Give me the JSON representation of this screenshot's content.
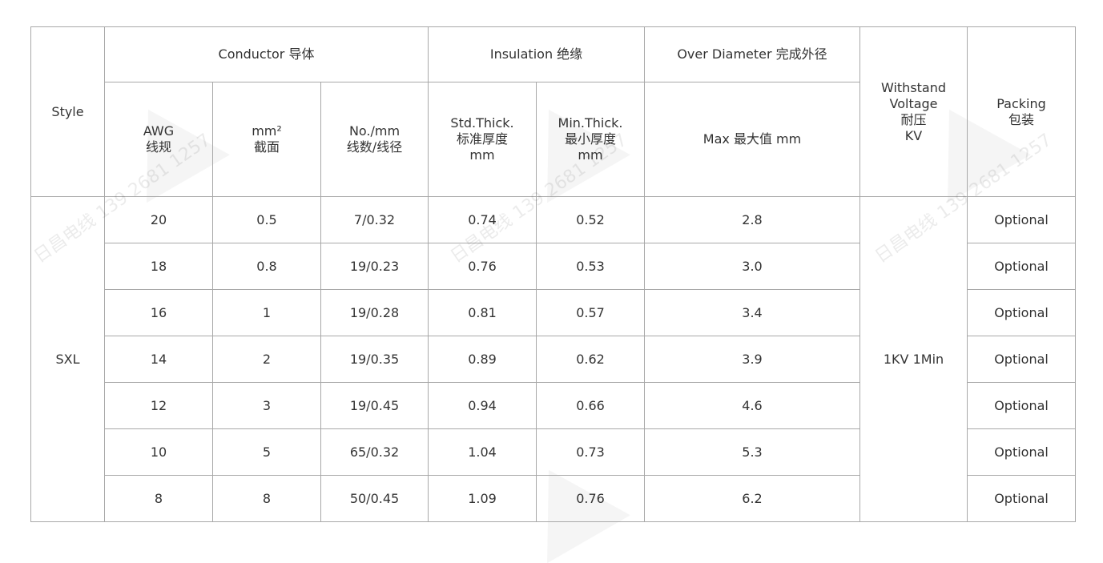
{
  "watermark": "日昌电线 139 2681 1257",
  "header": {
    "style": "Style",
    "conductor": "Conductor 导体",
    "insulation": "Insulation 绝缘",
    "over_diameter": "Over Diameter 完成外径",
    "withstand": "Withstand\nVoltage\n耐压\nKV",
    "packing": "Packing\n包装",
    "awg": "AWG\n线规",
    "mm2": "mm²\n截面",
    "no_mm": "No./mm\n线数/线径",
    "std_thick": "Std.Thick.\n标准厚度\nmm",
    "min_thick": "Min.Thick.\n最小厚度\nmm",
    "max": "Max 最大值 mm"
  },
  "style_value": "SXL",
  "voltage_value": "1KV 1Min",
  "rows": [
    {
      "awg": "20",
      "mm2": "0.5",
      "no_mm": "7/0.32",
      "std": "0.74",
      "min": "0.52",
      "max": "2.8",
      "packing": "Optional"
    },
    {
      "awg": "18",
      "mm2": "0.8",
      "no_mm": "19/0.23",
      "std": "0.76",
      "min": "0.53",
      "max": "3.0",
      "packing": "Optional"
    },
    {
      "awg": "16",
      "mm2": "1",
      "no_mm": "19/0.28",
      "std": "0.81",
      "min": "0.57",
      "max": "3.4",
      "packing": "Optional"
    },
    {
      "awg": "14",
      "mm2": "2",
      "no_mm": "19/0.35",
      "std": "0.89",
      "min": "0.62",
      "max": "3.9",
      "packing": "Optional"
    },
    {
      "awg": "12",
      "mm2": "3",
      "no_mm": "19/0.45",
      "std": "0.94",
      "min": "0.66",
      "max": "4.6",
      "packing": "Optional"
    },
    {
      "awg": "10",
      "mm2": "5",
      "no_mm": "65/0.32",
      "std": "1.04",
      "min": "0.73",
      "max": "5.3",
      "packing": "Optional"
    },
    {
      "awg": "8",
      "mm2": "8",
      "no_mm": "50/0.45",
      "std": "1.09",
      "min": "0.76",
      "max": "6.2",
      "packing": "Optional"
    }
  ]
}
